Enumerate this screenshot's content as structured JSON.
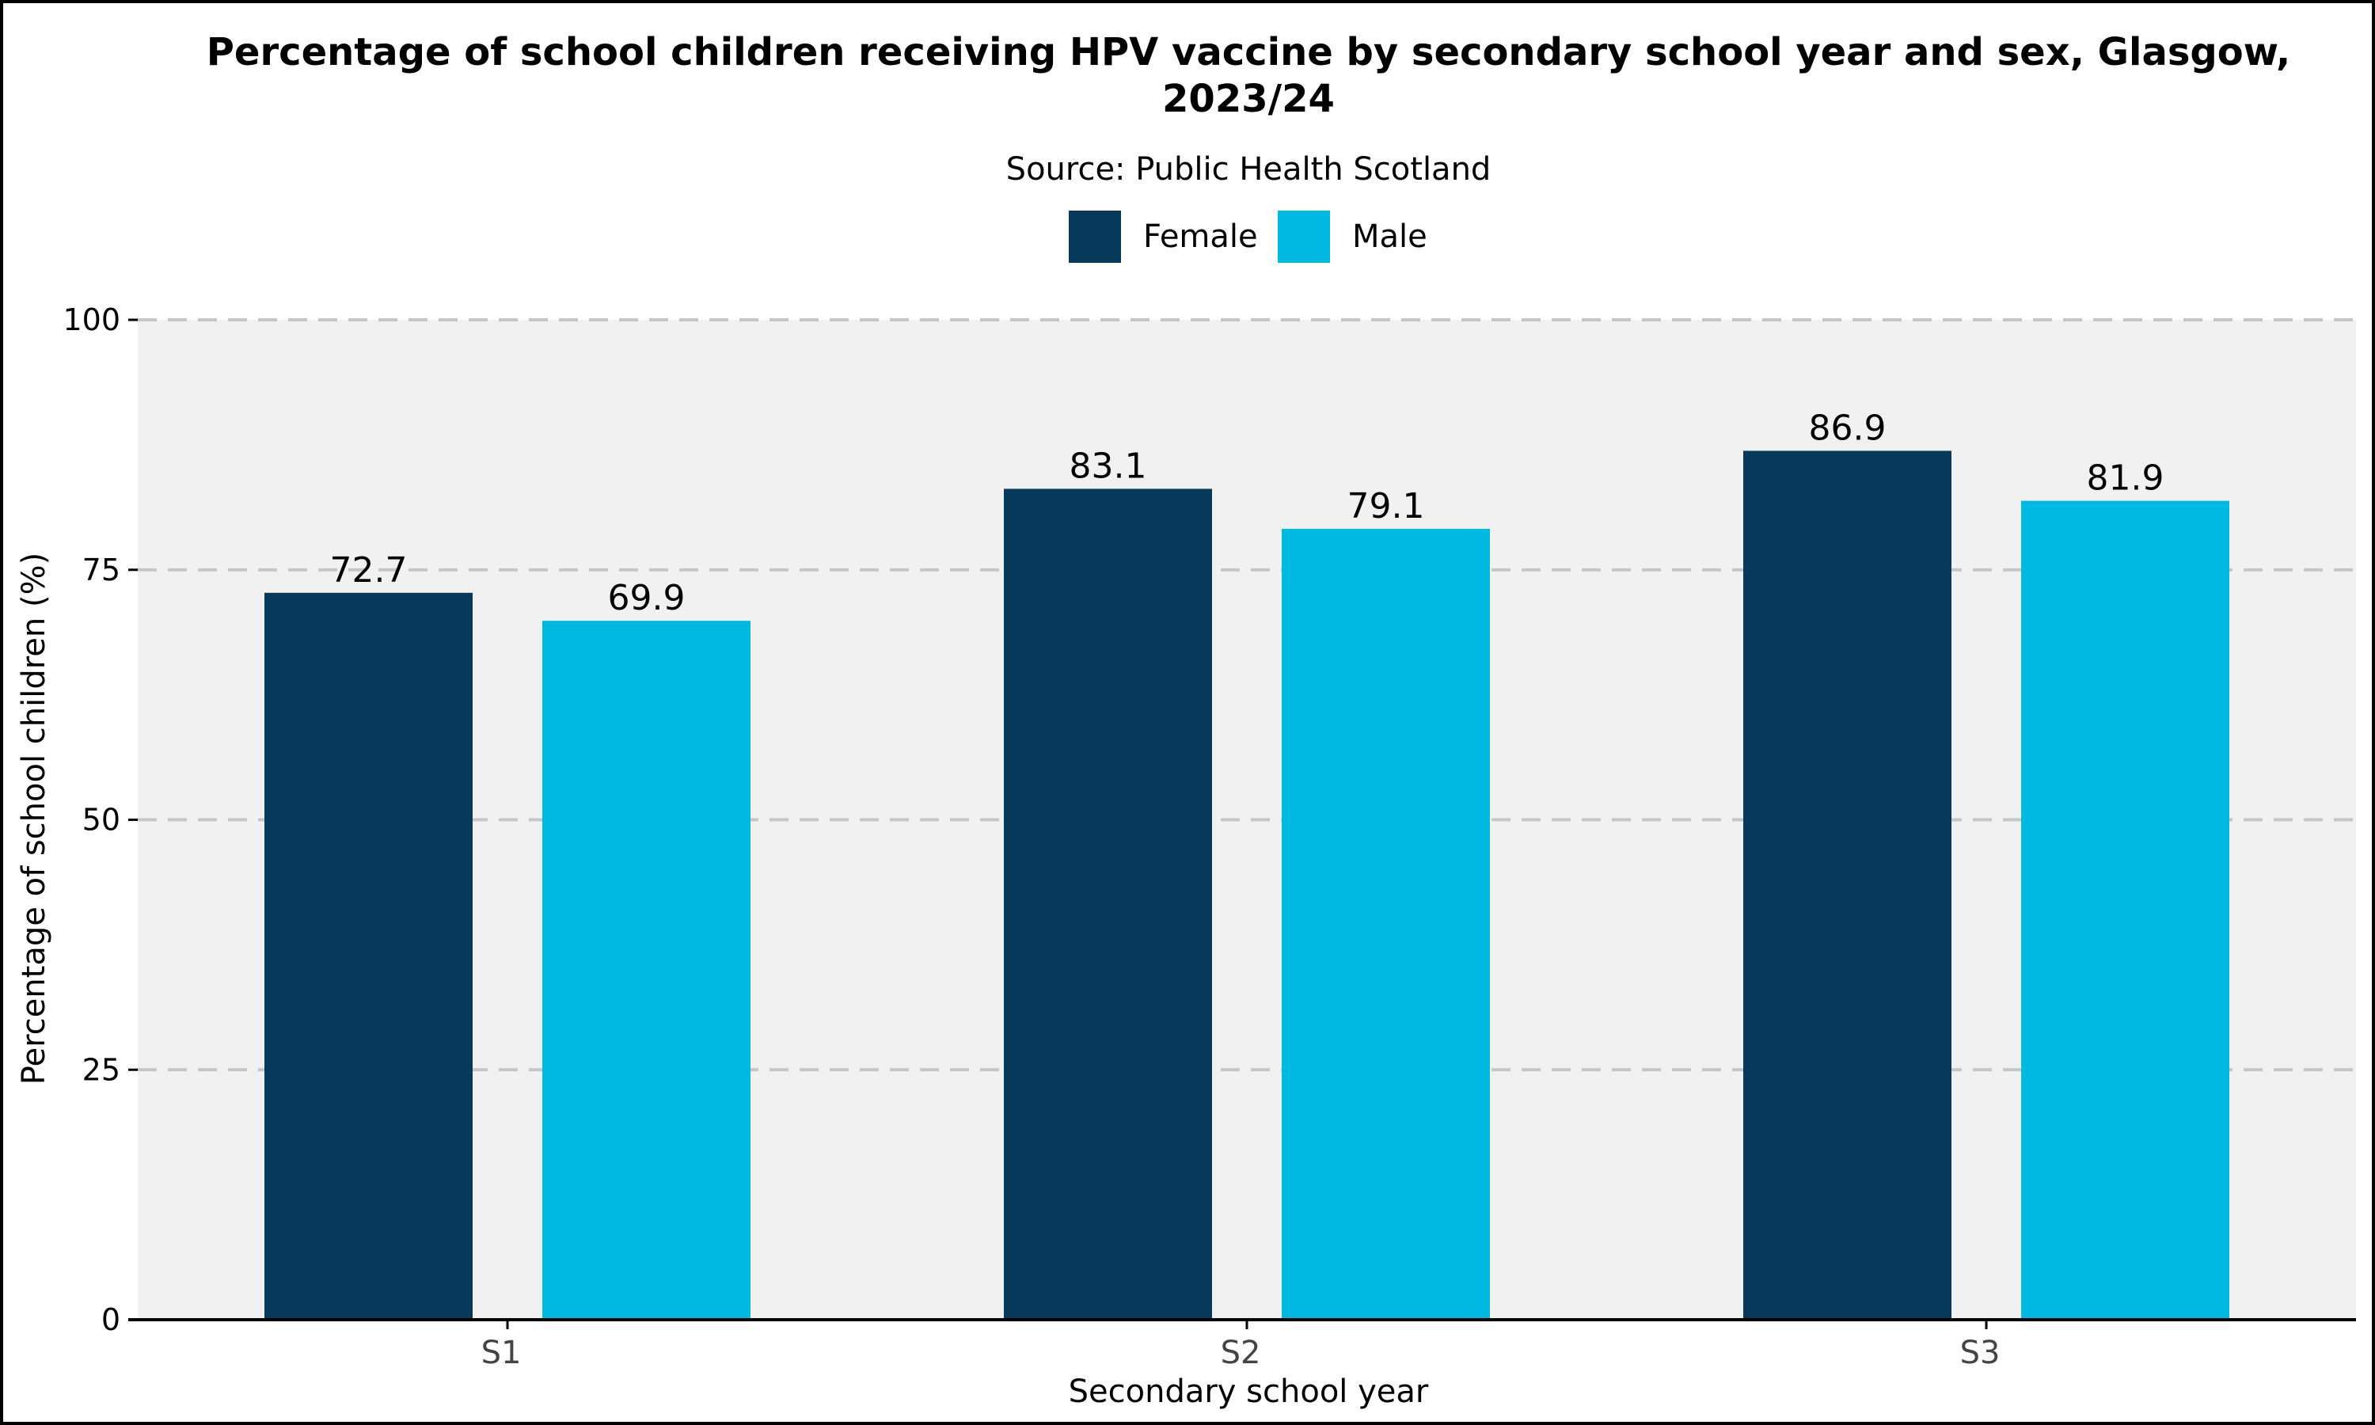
{
  "chart_data": {
    "type": "bar",
    "title_line1": "Percentage of school children receiving HPV vaccine by secondary school year and sex, Glasgow,",
    "title_line2": "2023/24",
    "subtitle": "Source: Public Health Scotland",
    "xlabel": "Secondary school year",
    "ylabel": "Percentage of school children (%)",
    "categories": [
      "S1",
      "S2",
      "S3"
    ],
    "series": [
      {
        "name": "Female",
        "color": "#073a5a",
        "values": [
          72.7,
          83.1,
          86.9
        ]
      },
      {
        "name": "Male",
        "color": "#00b9e0",
        "values": [
          69.9,
          79.1,
          81.9
        ]
      }
    ],
    "ylim": [
      0,
      100
    ],
    "yticks": [
      0,
      25,
      50,
      75,
      100
    ],
    "grid": "horizontal dashed",
    "legend_position": "top",
    "panel_background": "#f1f1f1",
    "grid_color": "#c6c6c6"
  }
}
